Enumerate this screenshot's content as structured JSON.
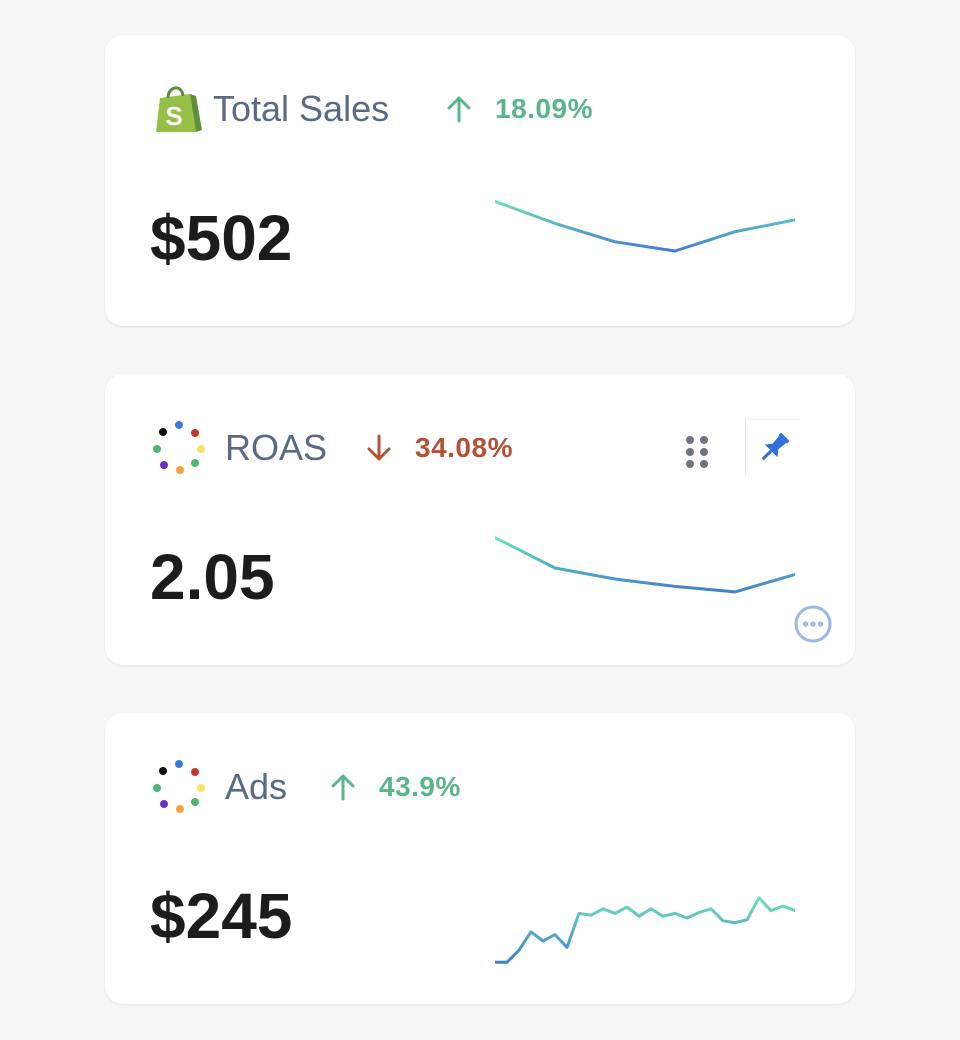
{
  "colors": {
    "positive": "#5bb58a",
    "negative": "#b55236",
    "shopify_green": "#95bf47",
    "pin_blue": "#2f6fde",
    "spark_start": "#6fe0b9",
    "spark_end": "#3f7fd0"
  },
  "cards": [
    {
      "title": "Total Sales",
      "icon": "shopify-bag-icon",
      "logo_letter": "S",
      "change_direction": "up",
      "change_label": "18.09%",
      "value": "$502",
      "sparkline": [
        0.92,
        0.68,
        0.48,
        0.38,
        0.59,
        0.72
      ]
    },
    {
      "title": "ROAS",
      "icon": "dot-ring-logo-icon",
      "change_direction": "down",
      "change_label": "34.08%",
      "value": "2.05",
      "sparkline": [
        0.95,
        0.62,
        0.5,
        0.42,
        0.36,
        0.55
      ],
      "actions": [
        "drag-handle-icon",
        "pin-icon",
        "more-options-icon"
      ]
    },
    {
      "title": "Ads",
      "icon": "dot-ring-logo-icon",
      "change_direction": "up",
      "change_label": "43.9%",
      "value": "$245",
      "sparkline": [
        0.02,
        0.02,
        0.15,
        0.35,
        0.25,
        0.32,
        0.18,
        0.55,
        0.53,
        0.6,
        0.55,
        0.62,
        0.52,
        0.6,
        0.52,
        0.55,
        0.5,
        0.56,
        0.6,
        0.47,
        0.45,
        0.48,
        0.72,
        0.58,
        0.63,
        0.58
      ]
    }
  ]
}
